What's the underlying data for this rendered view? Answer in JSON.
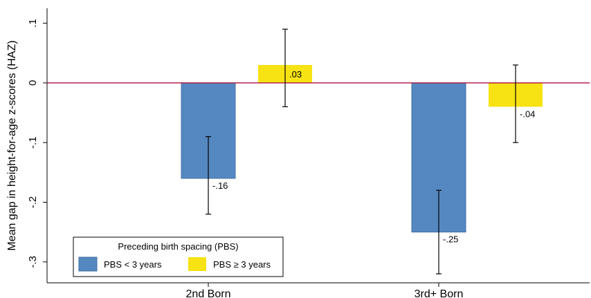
{
  "chart_data": {
    "type": "bar",
    "categories": [
      "2nd Born",
      "3rd+ Born"
    ],
    "series": [
      {
        "name": "PBS < 3 years",
        "color": "#5588c1",
        "values": [
          -0.16,
          -0.25
        ],
        "ci_low": [
          -0.22,
          -0.32
        ],
        "ci_high": [
          -0.09,
          -0.18
        ],
        "labels": [
          "-.16",
          "-.25"
        ]
      },
      {
        "name": "PBS ≥ 3 years",
        "color": "#f7e213",
        "values": [
          0.03,
          -0.04
        ],
        "ci_low": [
          -0.04,
          -0.1
        ],
        "ci_high": [
          0.09,
          0.03
        ],
        "labels": [
          ".03",
          "-.04"
        ]
      }
    ],
    "ylabel": "Mean gap in height-for-age z-scores (HAZ)",
    "xlabel": "",
    "ylim": [
      -0.335,
      0.125
    ],
    "yticks": [
      0.1,
      0,
      -0.1,
      -0.2,
      -0.3
    ],
    "ytick_labels": [
      ".1",
      "0",
      "-.1",
      "-.2",
      "-.3"
    ],
    "reference_line": {
      "value": 0,
      "color": "#b2214a"
    },
    "legend": {
      "title": "Preceding birth spacing (PBS)",
      "position": "bottom-left"
    },
    "grid": false
  }
}
